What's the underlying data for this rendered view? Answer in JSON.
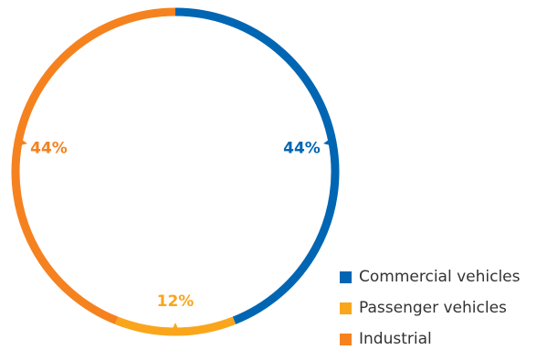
{
  "chart_data": {
    "type": "pie",
    "style": "donut-ring",
    "categories": [
      "Commercial vehicles",
      "Passenger vehicles",
      "Industrial"
    ],
    "values": [
      44,
      12,
      44
    ],
    "labels": [
      "44%",
      "12%",
      "44%"
    ],
    "colors": [
      "#0066b3",
      "#f9a61d",
      "#f5821f"
    ],
    "legend_position": "bottom-right"
  }
}
